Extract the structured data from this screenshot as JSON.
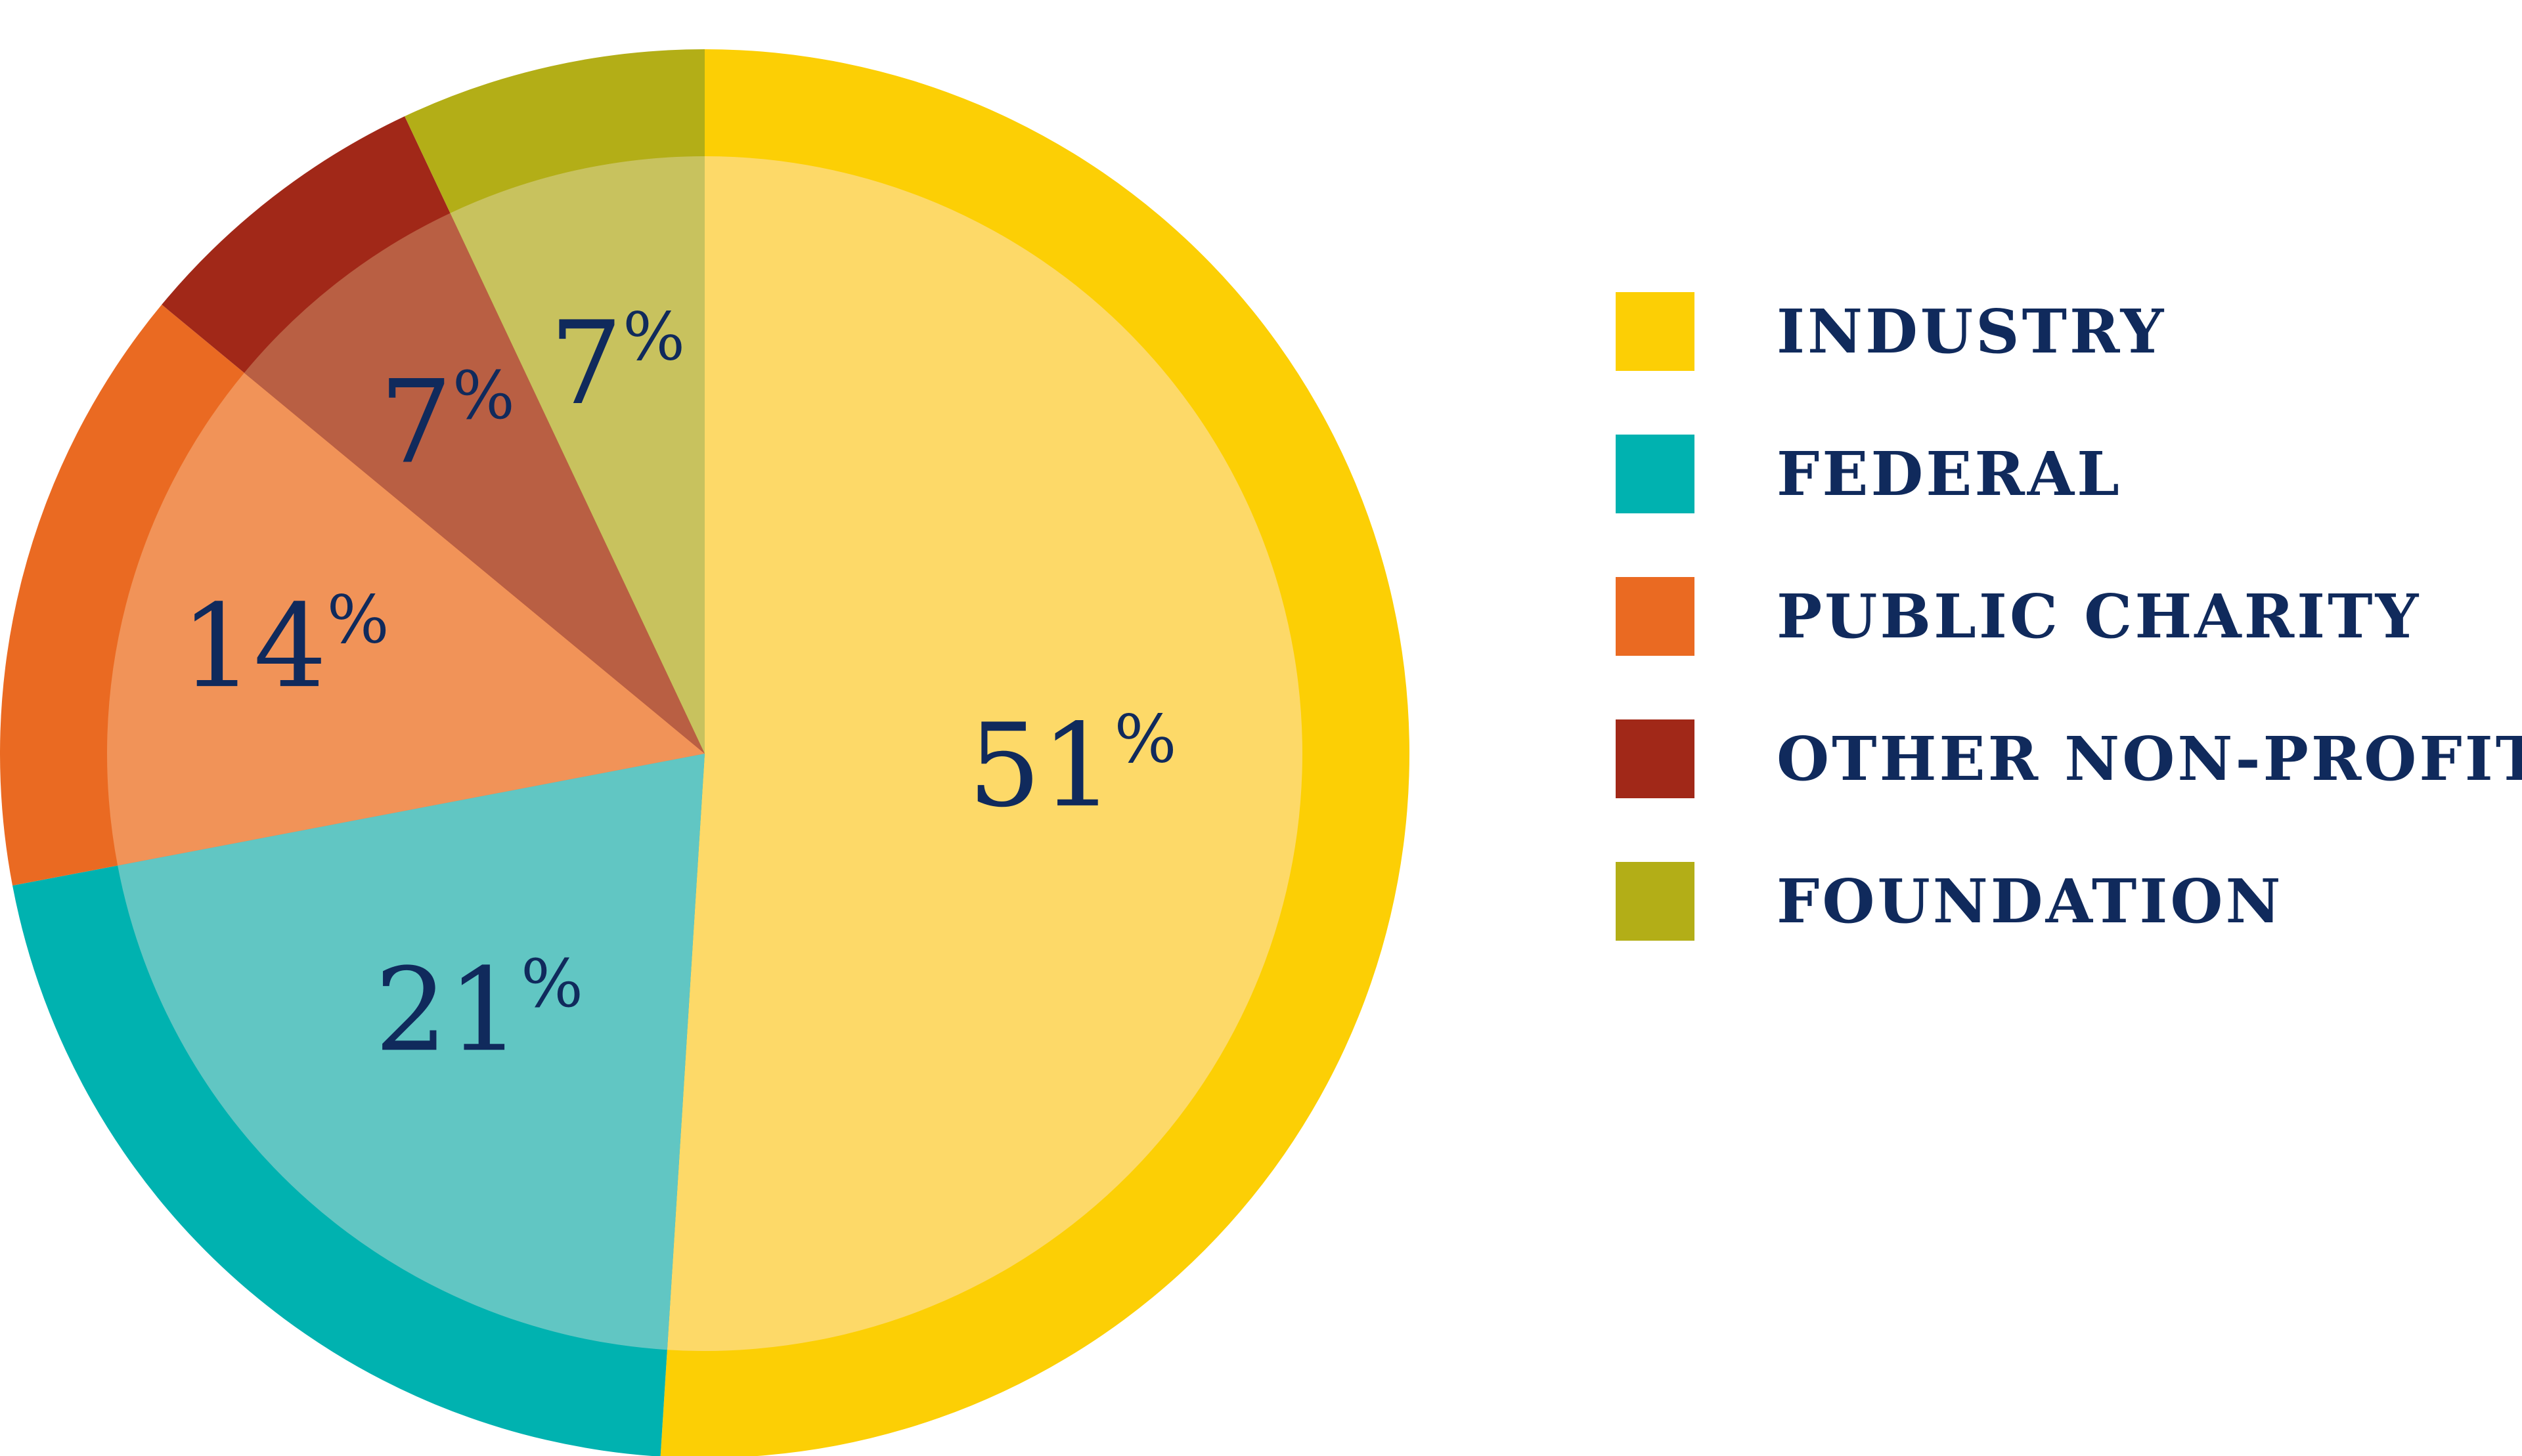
{
  "chart_data": {
    "type": "pie",
    "title": "",
    "start_angle_deg": 0,
    "direction": "clockwise",
    "slices": [
      {
        "name": "INDUSTRY",
        "value": 51,
        "label": "51",
        "suffix": "%",
        "color": "#fccf05",
        "inner_color": "#fdd968"
      },
      {
        "name": "FEDERAL",
        "value": 21,
        "label": "21",
        "suffix": "%",
        "color": "#00b2b0",
        "inner_color": "#61c6c3"
      },
      {
        "name": "PUBLIC CHARITY",
        "value": 14,
        "label": "14",
        "suffix": "%",
        "color": "#ea6a22",
        "inner_color": "#f19358"
      },
      {
        "name": "OTHER NON-PROFIT",
        "value": 7,
        "label": "7",
        "suffix": "%",
        "color": "#a12818",
        "inner_color": "#b95f43"
      },
      {
        "name": "FOUNDATION",
        "value": 7,
        "label": "7",
        "suffix": "%",
        "color": "#b3ae17",
        "inner_color": "#c8c25e"
      }
    ],
    "legend": {
      "position": "right",
      "items": [
        {
          "label": "INDUSTRY",
          "color": "#fccf05"
        },
        {
          "label": "FEDERAL",
          "color": "#00b2b0"
        },
        {
          "label": "PUBLIC CHARITY",
          "color": "#ea6a22"
        },
        {
          "label": "OTHER NON-PROFIT",
          "color": "#a12818"
        },
        {
          "label": "FOUNDATION",
          "color": "#b3ae17"
        }
      ]
    }
  }
}
